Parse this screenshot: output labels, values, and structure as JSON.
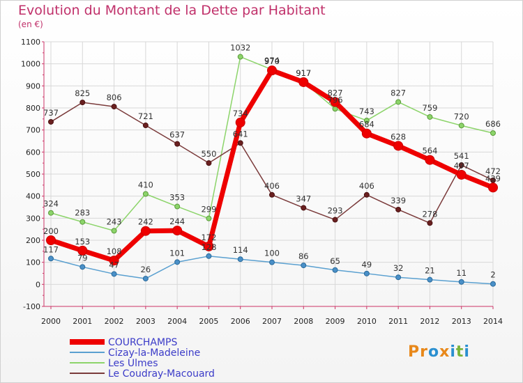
{
  "chart_data": {
    "type": "line",
    "title": "Evolution du Montant de la Dette par Habitant",
    "subtitle": "(en €)",
    "x": [
      "2000",
      "2001",
      "2002",
      "2003",
      "2004",
      "2005",
      "2006",
      "2007",
      "2008",
      "2009",
      "2010",
      "2011",
      "2012",
      "2013",
      "2014"
    ],
    "ylim": [
      -100,
      1100
    ],
    "yticks": [
      -100,
      0,
      100,
      200,
      300,
      400,
      500,
      600,
      700,
      800,
      900,
      1000,
      1100
    ],
    "grid": true,
    "legend_position": "bottom-left",
    "series": [
      {
        "name": "COURCHAMPS",
        "color": "#ee0000",
        "values": [
          200,
          153,
          108,
          242,
          244,
          172,
          734,
          970,
          917,
          827,
          684,
          628,
          564,
          497,
          439
        ]
      },
      {
        "name": "Cizay-la-Madeleine",
        "color": "#5aa0d0",
        "values": [
          117,
          79,
          47,
          26,
          101,
          128,
          114,
          100,
          86,
          65,
          49,
          32,
          21,
          11,
          2
        ]
      },
      {
        "name": "Les Ulmes",
        "color": "#8cd46a",
        "values": [
          324,
          283,
          243,
          410,
          353,
          299,
          1032,
          974,
          917,
          796,
          743,
          827,
          759,
          720,
          686
        ]
      },
      {
        "name": "Le Coudray-Macouard",
        "color": "#7a3a3a",
        "values": [
          737,
          825,
          806,
          721,
          637,
          550,
          641,
          406,
          347,
          293,
          406,
          339,
          278,
          541,
          472
        ]
      }
    ]
  },
  "logo": {
    "text": "Proxiti",
    "letters": [
      "P",
      "r",
      "o",
      "x",
      "i",
      "t",
      "i"
    ],
    "colors": [
      "#e8881a",
      "#e8881a",
      "#2a8fd0",
      "#e8881a",
      "#2a8fd0",
      "#7ab43a",
      "#2a8fd0"
    ]
  }
}
